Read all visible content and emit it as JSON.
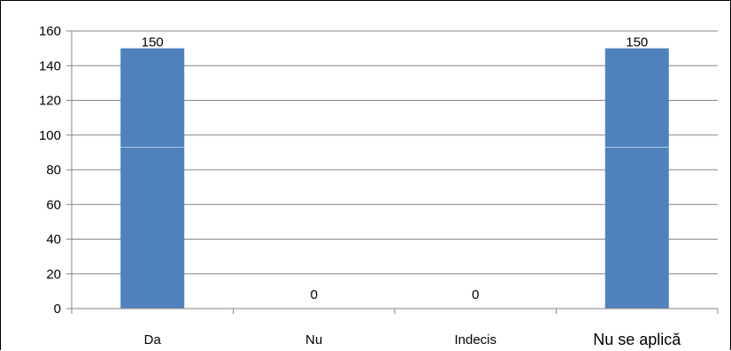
{
  "chart_data": {
    "type": "bar",
    "categories": [
      "Da",
      "Nu",
      "Indecis",
      "Nu se aplică"
    ],
    "values": [
      150,
      0,
      0,
      150
    ],
    "data_labels": [
      "150",
      "0",
      "0",
      "150"
    ],
    "ylim": [
      0,
      160
    ],
    "y_ticks": [
      0,
      20,
      40,
      60,
      80,
      100,
      120,
      140,
      160
    ],
    "grid": true,
    "legend": false,
    "colors": {
      "bar": "#4f81bd",
      "grid": "#868686",
      "axis": "#868686",
      "bar_highlight": "#dbe5f1"
    }
  }
}
